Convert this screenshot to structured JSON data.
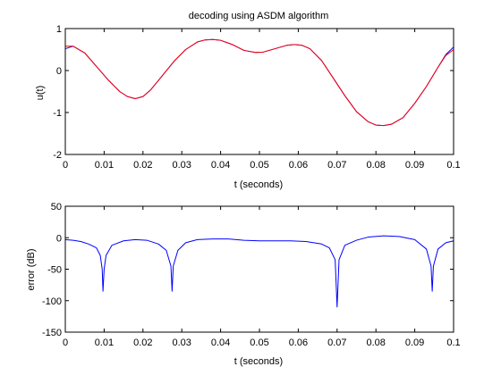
{
  "chart_data": [
    {
      "type": "line",
      "title": "decoding using ASDM algorithm",
      "xlabel": "t (seconds)",
      "ylabel": "u(t)",
      "xlim": [
        0,
        0.1
      ],
      "ylim": [
        -2,
        1
      ],
      "xticks": [
        0,
        0.01,
        0.02,
        0.03,
        0.04,
        0.05,
        0.06,
        0.07,
        0.08,
        0.09,
        0.1
      ],
      "xtick_labels": [
        "0",
        "0.01",
        "0.02",
        "0.03",
        "0.04",
        "0.05",
        "0.06",
        "0.07",
        "0.08",
        "0.09",
        "0.1"
      ],
      "yticks": [
        -2,
        -1,
        0,
        1
      ],
      "ytick_labels": [
        "-2",
        "-1",
        "0",
        "1"
      ],
      "grid": false,
      "series": [
        {
          "color": "#0000ff",
          "x": [
            0,
            0.002,
            0.005,
            0.008,
            0.011,
            0.014,
            0.016,
            0.018,
            0.02,
            0.022,
            0.025,
            0.028,
            0.031,
            0.034,
            0.036,
            0.038,
            0.04,
            0.043,
            0.046,
            0.049,
            0.051,
            0.054,
            0.057,
            0.059,
            0.061,
            0.063,
            0.066,
            0.069,
            0.072,
            0.075,
            0.078,
            0.08,
            0.082,
            0.084,
            0.087,
            0.09,
            0.093,
            0.096,
            0.098,
            0.1
          ],
          "y": [
            0.52,
            0.58,
            0.42,
            0.1,
            -0.22,
            -0.5,
            -0.62,
            -0.67,
            -0.62,
            -0.46,
            -0.12,
            0.22,
            0.5,
            0.68,
            0.73,
            0.74,
            0.72,
            0.62,
            0.48,
            0.43,
            0.44,
            0.52,
            0.6,
            0.62,
            0.6,
            0.52,
            0.24,
            -0.18,
            -0.6,
            -0.98,
            -1.22,
            -1.3,
            -1.31,
            -1.28,
            -1.12,
            -0.78,
            -0.38,
            0.08,
            0.38,
            0.56
          ]
        },
        {
          "color": "#ff0000",
          "x": [
            0,
            0.002,
            0.005,
            0.008,
            0.011,
            0.014,
            0.016,
            0.018,
            0.02,
            0.022,
            0.025,
            0.028,
            0.031,
            0.034,
            0.036,
            0.038,
            0.04,
            0.043,
            0.046,
            0.049,
            0.051,
            0.054,
            0.057,
            0.059,
            0.061,
            0.063,
            0.066,
            0.069,
            0.072,
            0.075,
            0.078,
            0.08,
            0.082,
            0.084,
            0.087,
            0.09,
            0.093,
            0.096,
            0.098,
            0.1
          ],
          "y": [
            0.58,
            0.58,
            0.42,
            0.1,
            -0.22,
            -0.5,
            -0.62,
            -0.67,
            -0.62,
            -0.46,
            -0.12,
            0.22,
            0.5,
            0.68,
            0.73,
            0.74,
            0.72,
            0.62,
            0.48,
            0.43,
            0.44,
            0.52,
            0.6,
            0.62,
            0.6,
            0.52,
            0.24,
            -0.18,
            -0.6,
            -0.98,
            -1.22,
            -1.3,
            -1.31,
            -1.28,
            -1.12,
            -0.78,
            -0.38,
            0.08,
            0.36,
            0.5
          ]
        }
      ]
    },
    {
      "type": "line",
      "title": "",
      "xlabel": "t (seconds)",
      "ylabel": "error (dB)",
      "xlim": [
        0,
        0.1
      ],
      "ylim": [
        -150,
        50
      ],
      "xticks": [
        0,
        0.01,
        0.02,
        0.03,
        0.04,
        0.05,
        0.06,
        0.07,
        0.08,
        0.09,
        0.1
      ],
      "xtick_labels": [
        "0",
        "0.01",
        "0.02",
        "0.03",
        "0.04",
        "0.05",
        "0.06",
        "0.07",
        "0.08",
        "0.09",
        "0.1"
      ],
      "yticks": [
        -150,
        -100,
        -50,
        0,
        50
      ],
      "ytick_labels": [
        "-150",
        "-100",
        "-50",
        "0",
        "50"
      ],
      "grid": false,
      "series": [
        {
          "color": "#0000ff",
          "x": [
            0,
            0.002,
            0.004,
            0.006,
            0.008,
            0.009,
            0.0095,
            0.0097,
            0.01,
            0.0105,
            0.012,
            0.015,
            0.018,
            0.021,
            0.024,
            0.026,
            0.0272,
            0.0275,
            0.0278,
            0.029,
            0.031,
            0.034,
            0.038,
            0.042,
            0.046,
            0.05,
            0.054,
            0.058,
            0.062,
            0.066,
            0.068,
            0.0695,
            0.07,
            0.0705,
            0.072,
            0.075,
            0.078,
            0.082,
            0.086,
            0.09,
            0.093,
            0.0942,
            0.0945,
            0.0948,
            0.096,
            0.098,
            0.1
          ],
          "y": [
            -3,
            -4,
            -6,
            -10,
            -16,
            -28,
            -50,
            -85,
            -50,
            -28,
            -12,
            -5,
            -3,
            -4,
            -10,
            -20,
            -45,
            -85,
            -45,
            -20,
            -8,
            -3,
            -2,
            -2,
            -4,
            -5,
            -5,
            -5,
            -6,
            -10,
            -16,
            -35,
            -110,
            -35,
            -12,
            -4,
            1,
            3,
            2,
            -3,
            -18,
            -45,
            -85,
            -45,
            -18,
            -8,
            -5
          ]
        }
      ]
    }
  ]
}
